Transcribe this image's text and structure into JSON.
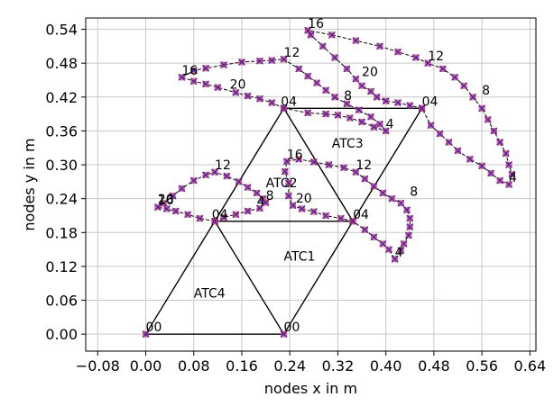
{
  "chart_data": {
    "type": "scatter",
    "xlabel": "nodes x in m",
    "ylabel": "nodes y in m",
    "xlim": [
      -0.1,
      0.65
    ],
    "ylim": [
      -0.03,
      0.56
    ],
    "grid": true,
    "xticks": [
      -0.08,
      0.0,
      0.08,
      0.16,
      0.24,
      0.32,
      0.4,
      0.48,
      0.56,
      0.64
    ],
    "xtick_labels": [
      "−0.08",
      "0.00",
      "0.08",
      "0.16",
      "0.24",
      "0.32",
      "0.40",
      "0.48",
      "0.56",
      "0.64"
    ],
    "yticks": [
      0.0,
      0.06,
      0.12,
      0.18,
      0.24,
      0.3,
      0.36,
      0.42,
      0.48,
      0.54
    ],
    "ytick_labels": [
      "0.00",
      "0.06",
      "0.12",
      "0.18",
      "0.24",
      "0.30",
      "0.36",
      "0.42",
      "0.48",
      "0.54"
    ],
    "colors": {
      "frame": "#000000",
      "trajectory": "#000000",
      "marker_a": "#e8334a",
      "marker_b": "#2a2acc",
      "grid": "#c8c8c8"
    },
    "structure_lines": [
      [
        [
          0.0,
          0.0
        ],
        [
          0.23,
          0.0
        ]
      ],
      [
        [
          0.0,
          0.0
        ],
        [
          0.115,
          0.2
        ]
      ],
      [
        [
          0.115,
          0.2
        ],
        [
          0.23,
          0.0
        ]
      ],
      [
        [
          0.23,
          0.0
        ],
        [
          0.345,
          0.2
        ]
      ],
      [
        [
          0.115,
          0.2
        ],
        [
          0.345,
          0.2
        ]
      ],
      [
        [
          0.115,
          0.2
        ],
        [
          0.23,
          0.4
        ]
      ],
      [
        [
          0.23,
          0.4
        ],
        [
          0.345,
          0.2
        ]
      ],
      [
        [
          0.23,
          0.4
        ],
        [
          0.46,
          0.4
        ]
      ],
      [
        [
          0.345,
          0.2
        ],
        [
          0.46,
          0.4
        ]
      ]
    ],
    "trajectories": [
      [
        [
          0.115,
          0.2
        ],
        [
          0.09,
          0.205
        ],
        [
          0.07,
          0.212
        ],
        [
          0.05,
          0.218
        ],
        [
          0.035,
          0.222
        ],
        [
          0.02,
          0.225
        ],
        [
          0.03,
          0.232
        ],
        [
          0.045,
          0.245
        ],
        [
          0.06,
          0.258
        ],
        [
          0.08,
          0.272
        ],
        [
          0.1,
          0.282
        ],
        [
          0.115,
          0.287
        ],
        [
          0.135,
          0.28
        ],
        [
          0.155,
          0.27
        ],
        [
          0.17,
          0.26
        ],
        [
          0.185,
          0.25
        ],
        [
          0.195,
          0.24
        ],
        [
          0.2,
          0.233
        ],
        [
          0.19,
          0.223
        ],
        [
          0.17,
          0.218
        ],
        [
          0.15,
          0.212
        ],
        [
          0.13,
          0.207
        ],
        [
          0.115,
          0.2
        ]
      ],
      [
        [
          0.345,
          0.2
        ],
        [
          0.325,
          0.205
        ],
        [
          0.3,
          0.21
        ],
        [
          0.28,
          0.217
        ],
        [
          0.26,
          0.222
        ],
        [
          0.245,
          0.228
        ],
        [
          0.238,
          0.245
        ],
        [
          0.238,
          0.268
        ],
        [
          0.232,
          0.288
        ],
        [
          0.235,
          0.306
        ],
        [
          0.255,
          0.31
        ],
        [
          0.28,
          0.305
        ],
        [
          0.305,
          0.3
        ],
        [
          0.33,
          0.295
        ],
        [
          0.35,
          0.287
        ],
        [
          0.365,
          0.275
        ],
        [
          0.38,
          0.262
        ],
        [
          0.395,
          0.25
        ],
        [
          0.41,
          0.24
        ],
        [
          0.425,
          0.232
        ],
        [
          0.435,
          0.22
        ],
        [
          0.44,
          0.205
        ],
        [
          0.44,
          0.19
        ],
        [
          0.438,
          0.175
        ],
        [
          0.43,
          0.16
        ],
        [
          0.425,
          0.148
        ],
        [
          0.415,
          0.133
        ],
        [
          0.405,
          0.15
        ],
        [
          0.395,
          0.16
        ],
        [
          0.38,
          0.172
        ],
        [
          0.365,
          0.185
        ],
        [
          0.345,
          0.2
        ]
      ],
      [
        [
          0.23,
          0.4
        ],
        [
          0.21,
          0.41
        ],
        [
          0.19,
          0.417
        ],
        [
          0.17,
          0.422
        ],
        [
          0.15,
          0.428
        ],
        [
          0.12,
          0.437
        ],
        [
          0.1,
          0.443
        ],
        [
          0.08,
          0.448
        ],
        [
          0.06,
          0.455
        ],
        [
          0.08,
          0.467
        ],
        [
          0.1,
          0.471
        ],
        [
          0.13,
          0.477
        ],
        [
          0.16,
          0.482
        ],
        [
          0.19,
          0.484
        ],
        [
          0.21,
          0.485
        ],
        [
          0.23,
          0.487
        ],
        [
          0.255,
          0.47
        ],
        [
          0.27,
          0.457
        ],
        [
          0.285,
          0.445
        ],
        [
          0.3,
          0.432
        ],
        [
          0.315,
          0.42
        ],
        [
          0.335,
          0.408
        ],
        [
          0.355,
          0.397
        ],
        [
          0.375,
          0.385
        ],
        [
          0.39,
          0.372
        ],
        [
          0.4,
          0.36
        ],
        [
          0.38,
          0.367
        ],
        [
          0.36,
          0.376
        ],
        [
          0.34,
          0.383
        ],
        [
          0.32,
          0.388
        ],
        [
          0.3,
          0.39
        ],
        [
          0.27,
          0.392
        ],
        [
          0.23,
          0.4
        ]
      ],
      [
        [
          0.46,
          0.4
        ],
        [
          0.44,
          0.405
        ],
        [
          0.42,
          0.41
        ],
        [
          0.4,
          0.413
        ],
        [
          0.385,
          0.42
        ],
        [
          0.375,
          0.43
        ],
        [
          0.36,
          0.44
        ],
        [
          0.35,
          0.452
        ],
        [
          0.335,
          0.47
        ],
        [
          0.315,
          0.49
        ],
        [
          0.295,
          0.51
        ],
        [
          0.275,
          0.53
        ],
        [
          0.27,
          0.538
        ],
        [
          0.31,
          0.53
        ],
        [
          0.35,
          0.52
        ],
        [
          0.39,
          0.51
        ],
        [
          0.42,
          0.5
        ],
        [
          0.45,
          0.49
        ],
        [
          0.47,
          0.48
        ],
        [
          0.495,
          0.47
        ],
        [
          0.515,
          0.455
        ],
        [
          0.53,
          0.44
        ],
        [
          0.545,
          0.42
        ],
        [
          0.56,
          0.4
        ],
        [
          0.57,
          0.38
        ],
        [
          0.58,
          0.36
        ],
        [
          0.59,
          0.34
        ],
        [
          0.6,
          0.32
        ],
        [
          0.605,
          0.3
        ],
        [
          0.61,
          0.283
        ],
        [
          0.605,
          0.265
        ],
        [
          0.59,
          0.272
        ],
        [
          0.575,
          0.285
        ],
        [
          0.56,
          0.298
        ],
        [
          0.54,
          0.31
        ],
        [
          0.52,
          0.325
        ],
        [
          0.505,
          0.34
        ],
        [
          0.49,
          0.355
        ],
        [
          0.475,
          0.37
        ],
        [
          0.46,
          0.4
        ]
      ]
    ],
    "static_markers": [
      [
        0.0,
        0.0
      ],
      [
        0.23,
        0.0
      ]
    ],
    "point_labels": [
      {
        "text": "16",
        "x": 0.02,
        "y": 0.225
      },
      {
        "text": "20",
        "x": 0.02,
        "y": 0.227
      },
      {
        "text": "12",
        "x": 0.115,
        "y": 0.287
      },
      {
        "text": "8",
        "x": 0.2,
        "y": 0.233
      },
      {
        "text": "4",
        "x": 0.185,
        "y": 0.223
      },
      {
        "text": "04",
        "x": 0.11,
        "y": 0.2
      },
      {
        "text": "16",
        "x": 0.235,
        "y": 0.306
      },
      {
        "text": "12",
        "x": 0.35,
        "y": 0.287
      },
      {
        "text": "20",
        "x": 0.25,
        "y": 0.228
      },
      {
        "text": "8",
        "x": 0.44,
        "y": 0.24
      },
      {
        "text": "04",
        "x": 0.345,
        "y": 0.2
      },
      {
        "text": "4",
        "x": 0.415,
        "y": 0.133
      },
      {
        "text": "16",
        "x": 0.06,
        "y": 0.455
      },
      {
        "text": "20",
        "x": 0.14,
        "y": 0.43
      },
      {
        "text": "12",
        "x": 0.23,
        "y": 0.487
      },
      {
        "text": "8",
        "x": 0.33,
        "y": 0.41
      },
      {
        "text": "04",
        "x": 0.225,
        "y": 0.4
      },
      {
        "text": "4",
        "x": 0.4,
        "y": 0.36
      },
      {
        "text": "16",
        "x": 0.27,
        "y": 0.538
      },
      {
        "text": "20",
        "x": 0.36,
        "y": 0.452
      },
      {
        "text": "12",
        "x": 0.47,
        "y": 0.48
      },
      {
        "text": "8",
        "x": 0.56,
        "y": 0.42
      },
      {
        "text": "04",
        "x": 0.46,
        "y": 0.4
      },
      {
        "text": "4",
        "x": 0.605,
        "y": 0.265
      },
      {
        "text": "00",
        "x": 0.0,
        "y": 0.0
      },
      {
        "text": "00",
        "x": 0.23,
        "y": 0.0
      }
    ],
    "annotations": [
      {
        "text": "ATC1",
        "x": 0.23,
        "y": 0.13
      },
      {
        "text": "ATC2",
        "x": 0.2,
        "y": 0.26
      },
      {
        "text": "ATC3",
        "x": 0.31,
        "y": 0.33
      },
      {
        "text": "ATC4",
        "x": 0.08,
        "y": 0.065
      }
    ]
  }
}
